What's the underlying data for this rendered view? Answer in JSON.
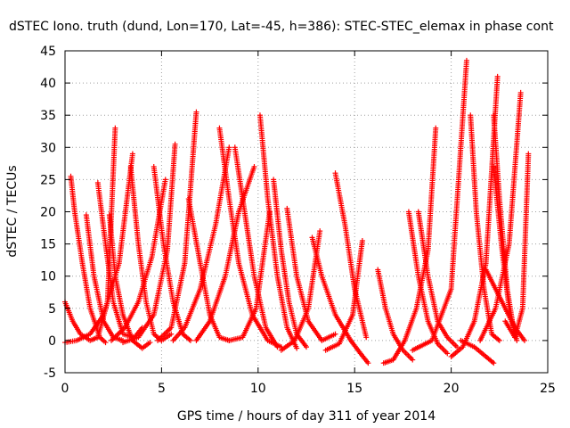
{
  "chart_data": {
    "type": "scatter",
    "title": "dSTEC Iono. truth (dund, Lon=170, Lat=-45, h=386): STEC-STEC_elemax in phase cont",
    "xlabel": "GPS time / hours of day 311 of year 2014",
    "ylabel": "dSTEC  / TECUs",
    "xlim": [
      0,
      25
    ],
    "ylim": [
      -5,
      45
    ],
    "x_ticks": [
      0,
      5,
      10,
      15,
      20,
      25
    ],
    "y_ticks": [
      -5,
      0,
      5,
      10,
      15,
      20,
      25,
      30,
      35,
      40,
      45
    ],
    "grid": true,
    "marker": "plus",
    "color": "#ff0000",
    "series": [
      {
        "x": [
          0.0,
          0.4,
          0.8,
          1.3,
          1.7,
          2.2,
          2.6
        ],
        "y": [
          6.0,
          3.0,
          1.0,
          0.0,
          0.5,
          6.0,
          33.0
        ]
      },
      {
        "x": [
          0.3,
          0.5,
          0.9,
          1.3,
          1.8,
          2.1
        ],
        "y": [
          25.5,
          20.0,
          12.0,
          5.0,
          0.5,
          -0.3
        ]
      },
      {
        "x": [
          0.0,
          0.6,
          1.3,
          2.0,
          2.8,
          3.5
        ],
        "y": [
          -0.3,
          0.0,
          1.0,
          4.0,
          12.0,
          29.0
        ]
      },
      {
        "x": [
          1.1,
          1.5,
          2.0,
          2.5,
          3.0
        ],
        "y": [
          19.5,
          10.0,
          3.0,
          0.5,
          0.0
        ]
      },
      {
        "x": [
          1.7,
          2.1,
          2.5,
          3.0,
          3.6,
          4.0
        ],
        "y": [
          24.5,
          15.0,
          6.0,
          1.0,
          0.5,
          2.0
        ]
      },
      {
        "x": [
          2.3,
          2.6,
          3.0,
          3.5,
          4.0,
          4.4
        ],
        "y": [
          19.5,
          10.0,
          4.0,
          0.0,
          -1.2,
          -0.3
        ]
      },
      {
        "x": [
          2.4,
          3.1,
          3.8,
          4.5,
          5.2
        ],
        "y": [
          0.0,
          2.0,
          6.0,
          13.0,
          25.0
        ]
      },
      {
        "x": [
          3.4,
          3.8,
          4.2,
          4.6,
          5.0,
          5.5
        ],
        "y": [
          27.0,
          15.0,
          6.0,
          1.0,
          0.0,
          1.0
        ]
      },
      {
        "x": [
          3.0,
          3.8,
          4.6,
          5.3,
          5.7
        ],
        "y": [
          -0.3,
          0.5,
          4.0,
          14.0,
          30.5
        ]
      },
      {
        "x": [
          4.6,
          5.1,
          5.6,
          6.1,
          6.5
        ],
        "y": [
          27.0,
          15.0,
          6.0,
          1.0,
          0.0
        ]
      },
      {
        "x": [
          4.8,
          5.5,
          6.2,
          6.8
        ],
        "y": [
          0.0,
          2.0,
          12.0,
          35.5
        ]
      },
      {
        "x": [
          5.6,
          6.2,
          7.0,
          7.8,
          8.5
        ],
        "y": [
          0.0,
          2.0,
          8.0,
          18.0,
          30.0
        ]
      },
      {
        "x": [
          6.4,
          7.0,
          7.5,
          8.0,
          8.5
        ],
        "y": [
          22.0,
          12.0,
          4.0,
          0.5,
          0.0
        ]
      },
      {
        "x": [
          6.8,
          7.5,
          8.3,
          9.0,
          9.8
        ],
        "y": [
          0.0,
          3.0,
          10.0,
          20.0,
          27.0
        ]
      },
      {
        "x": [
          8.0,
          8.5,
          9.0,
          9.7,
          10.5,
          11.2
        ],
        "y": [
          33.0,
          22.0,
          12.0,
          4.0,
          0.0,
          -1.0
        ]
      },
      {
        "x": [
          8.8,
          9.3,
          9.8,
          10.4,
          11.0
        ],
        "y": [
          30.0,
          20.0,
          10.0,
          2.0,
          -1.0
        ]
      },
      {
        "x": [
          8.5,
          9.2,
          9.9,
          10.6
        ],
        "y": [
          0.0,
          0.5,
          5.0,
          20.0
        ]
      },
      {
        "x": [
          10.1,
          10.5,
          11.0,
          11.5,
          12.0
        ],
        "y": [
          35.0,
          22.0,
          10.0,
          2.0,
          -1.2
        ]
      },
      {
        "x": [
          10.8,
          11.2,
          11.6,
          12.0,
          12.5
        ],
        "y": [
          25.0,
          14.0,
          6.0,
          1.0,
          -1.0
        ]
      },
      {
        "x": [
          11.5,
          12.0,
          12.6,
          13.3,
          14.0
        ],
        "y": [
          20.5,
          10.0,
          3.0,
          0.0,
          1.0
        ]
      },
      {
        "x": [
          11.2,
          11.9,
          12.6,
          13.2
        ],
        "y": [
          -1.5,
          0.0,
          5.0,
          17.0
        ]
      },
      {
        "x": [
          12.8,
          13.3,
          14.0,
          14.8,
          15.3,
          15.7
        ],
        "y": [
          16.0,
          10.0,
          4.0,
          0.0,
          -2.0,
          -3.5
        ]
      },
      {
        "x": [
          14.0,
          14.5,
          15.0,
          15.6
        ],
        "y": [
          26.0,
          18.0,
          8.0,
          0.5
        ]
      },
      {
        "x": [
          13.5,
          14.2,
          14.9,
          15.4
        ],
        "y": [
          -1.5,
          -0.5,
          4.0,
          15.5
        ]
      },
      {
        "x": [
          16.2,
          16.6,
          17.0,
          17.5,
          18.0
        ],
        "y": [
          11.0,
          5.0,
          1.0,
          -1.5,
          -3.0
        ]
      },
      {
        "x": [
          16.5,
          17.0,
          17.6,
          18.2,
          18.8,
          19.2
        ],
        "y": [
          -3.5,
          -3.0,
          0.0,
          5.0,
          14.0,
          33.0
        ]
      },
      {
        "x": [
          17.8,
          18.3,
          18.8,
          19.3,
          19.8
        ],
        "y": [
          20.0,
          10.0,
          3.0,
          -0.5,
          -2.0
        ]
      },
      {
        "x": [
          18.3,
          18.8,
          19.3,
          19.8,
          20.3
        ],
        "y": [
          20.0,
          10.0,
          3.0,
          0.5,
          -1.0
        ]
      },
      {
        "x": [
          18.0,
          19.0,
          20.0,
          20.8
        ],
        "y": [
          -1.5,
          0.0,
          8.0,
          43.5
        ]
      },
      {
        "x": [
          20.0,
          20.6,
          21.2,
          21.8,
          22.4
        ],
        "y": [
          -2.5,
          -1.0,
          3.0,
          12.0,
          41.0
        ]
      },
      {
        "x": [
          21.0,
          21.3,
          21.7,
          22.1,
          22.5
        ],
        "y": [
          35.0,
          20.0,
          8.0,
          1.0,
          0.0
        ]
      },
      {
        "x": [
          20.5,
          21.2,
          21.8,
          22.2
        ],
        "y": [
          0.0,
          -1.0,
          -2.5,
          -3.5
        ]
      },
      {
        "x": [
          22.2,
          22.5,
          22.9,
          23.3
        ],
        "y": [
          35.0,
          22.0,
          8.0,
          0.5
        ]
      },
      {
        "x": [
          22.2,
          22.6,
          23.0,
          23.4
        ],
        "y": [
          27.0,
          15.0,
          5.0,
          0.0
        ]
      },
      {
        "x": [
          21.5,
          22.3,
          23.0,
          23.6
        ],
        "y": [
          0.0,
          5.0,
          15.0,
          38.5
        ]
      },
      {
        "x": [
          21.8,
          22.3,
          22.8,
          23.3,
          23.8
        ],
        "y": [
          11.0,
          8.0,
          5.0,
          2.0,
          0.0
        ]
      },
      {
        "x": [
          22.8,
          23.3,
          23.7,
          24.0
        ],
        "y": [
          3.0,
          0.5,
          5.0,
          29.0
        ]
      }
    ]
  }
}
